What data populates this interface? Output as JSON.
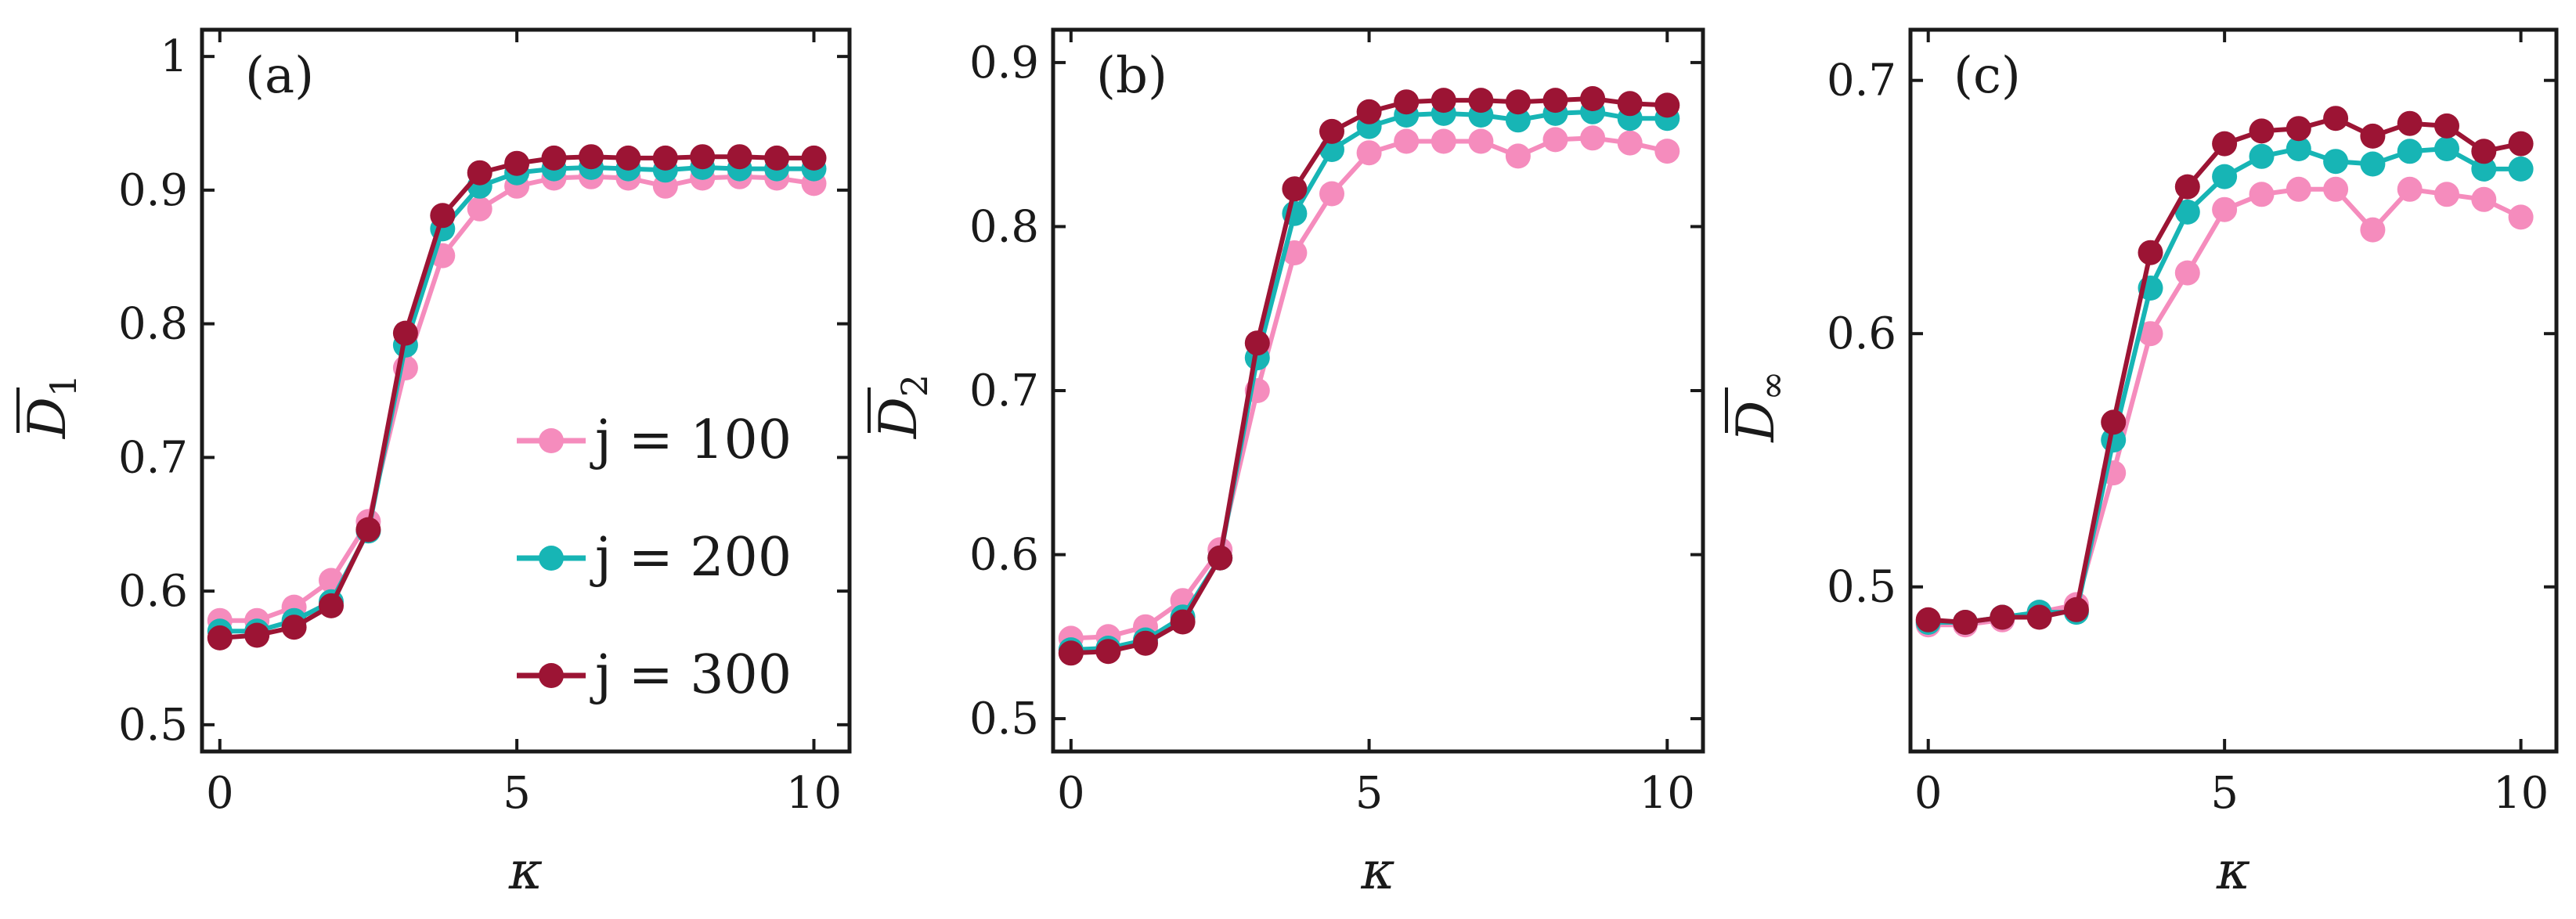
{
  "colors": {
    "j100": "#f58cbd",
    "j200": "#17b5b5",
    "j300": "#9c1434",
    "axis": "#1a1a1a"
  },
  "legend": {
    "entries": [
      {
        "key": "j100",
        "label": "j = 100"
      },
      {
        "key": "j200",
        "label": "j = 200"
      },
      {
        "key": "j300",
        "label": "j = 300"
      }
    ]
  },
  "chart_data": [
    {
      "type": "line",
      "panel": "(a)",
      "xlabel": "κ",
      "ylabel_symbol": "D",
      "ylabel_subscript": "1",
      "xlim": [
        -0.3,
        10.6
      ],
      "ylim": [
        0.48,
        1.02
      ],
      "xticks": [
        0,
        5,
        10
      ],
      "yticks": [
        0.5,
        0.6,
        0.7,
        0.8,
        0.9,
        1
      ],
      "ytick_labels": [
        "0.5",
        "0.6",
        "0.7",
        "0.8",
        "0.9",
        "1"
      ],
      "grid": false,
      "x": [
        0,
        0.625,
        1.25,
        1.875,
        2.5,
        3.125,
        3.75,
        4.375,
        5,
        5.625,
        6.25,
        6.875,
        7.5,
        8.125,
        8.75,
        9.375,
        10
      ],
      "series": [
        {
          "name": "j = 100",
          "key": "j100",
          "values": [
            0.578,
            0.578,
            0.588,
            0.608,
            0.652,
            0.767,
            0.851,
            0.886,
            0.903,
            0.909,
            0.91,
            0.909,
            0.903,
            0.909,
            0.91,
            0.909,
            0.905
          ]
        },
        {
          "name": "j = 200",
          "key": "j200",
          "values": [
            0.57,
            0.57,
            0.578,
            0.592,
            0.645,
            0.784,
            0.871,
            0.903,
            0.913,
            0.916,
            0.917,
            0.916,
            0.915,
            0.917,
            0.916,
            0.916,
            0.916
          ]
        },
        {
          "name": "j = 300",
          "key": "j300",
          "values": [
            0.565,
            0.567,
            0.573,
            0.589,
            0.646,
            0.793,
            0.881,
            0.913,
            0.92,
            0.924,
            0.925,
            0.924,
            0.924,
            0.925,
            0.925,
            0.924,
            0.924
          ]
        }
      ]
    },
    {
      "type": "line",
      "panel": "(b)",
      "xlabel": "κ",
      "ylabel_symbol": "D",
      "ylabel_subscript": "2",
      "xlim": [
        -0.3,
        10.6
      ],
      "ylim": [
        0.48,
        0.92
      ],
      "xticks": [
        0,
        5,
        10
      ],
      "yticks": [
        0.5,
        0.6,
        0.7,
        0.8,
        0.9
      ],
      "ytick_labels": [
        "0.5",
        "0.6",
        "0.7",
        "0.8",
        "0.9"
      ],
      "grid": false,
      "x": [
        0,
        0.625,
        1.25,
        1.875,
        2.5,
        3.125,
        3.75,
        4.375,
        5,
        5.625,
        6.25,
        6.875,
        7.5,
        8.125,
        8.75,
        9.375,
        10
      ],
      "series": [
        {
          "name": "j = 100",
          "key": "j100",
          "values": [
            0.549,
            0.55,
            0.556,
            0.572,
            0.603,
            0.7,
            0.784,
            0.82,
            0.845,
            0.852,
            0.852,
            0.852,
            0.843,
            0.853,
            0.854,
            0.851,
            0.846
          ]
        },
        {
          "name": "j = 200",
          "key": "j200",
          "values": [
            0.542,
            0.543,
            0.548,
            0.562,
            0.598,
            0.72,
            0.808,
            0.847,
            0.861,
            0.868,
            0.869,
            0.868,
            0.865,
            0.869,
            0.87,
            0.866,
            0.866
          ]
        },
        {
          "name": "j = 300",
          "key": "j300",
          "values": [
            0.54,
            0.541,
            0.546,
            0.559,
            0.598,
            0.729,
            0.823,
            0.858,
            0.87,
            0.876,
            0.877,
            0.877,
            0.876,
            0.877,
            0.878,
            0.875,
            0.874
          ]
        }
      ]
    },
    {
      "type": "line",
      "panel": "(c)",
      "xlabel": "κ",
      "ylabel_symbol": "D",
      "ylabel_subscript": "∞",
      "xlim": [
        -0.3,
        10.6
      ],
      "ylim": [
        0.435,
        0.72
      ],
      "xticks": [
        0,
        5,
        10
      ],
      "yticks": [
        0.5,
        0.6,
        0.7
      ],
      "ytick_labels": [
        "0.5",
        "0.6",
        "0.7"
      ],
      "grid": false,
      "x": [
        0,
        0.625,
        1.25,
        1.875,
        2.5,
        3.125,
        3.75,
        4.375,
        5,
        5.625,
        6.25,
        6.875,
        7.5,
        8.125,
        8.75,
        9.375,
        10
      ],
      "series": [
        {
          "name": "j = 100",
          "key": "j100",
          "values": [
            0.485,
            0.485,
            0.487,
            0.49,
            0.493,
            0.545,
            0.6,
            0.624,
            0.649,
            0.655,
            0.657,
            0.657,
            0.641,
            0.657,
            0.655,
            0.653,
            0.646
          ]
        },
        {
          "name": "j = 200",
          "key": "j200",
          "values": [
            0.486,
            0.486,
            0.488,
            0.49,
            0.49,
            0.558,
            0.618,
            0.648,
            0.662,
            0.67,
            0.673,
            0.668,
            0.667,
            0.672,
            0.673,
            0.665,
            0.665
          ]
        },
        {
          "name": "j = 300",
          "key": "j300",
          "values": [
            0.487,
            0.486,
            0.488,
            0.488,
            0.491,
            0.565,
            0.632,
            0.658,
            0.675,
            0.68,
            0.681,
            0.685,
            0.678,
            0.683,
            0.682,
            0.672,
            0.675
          ]
        }
      ]
    }
  ]
}
